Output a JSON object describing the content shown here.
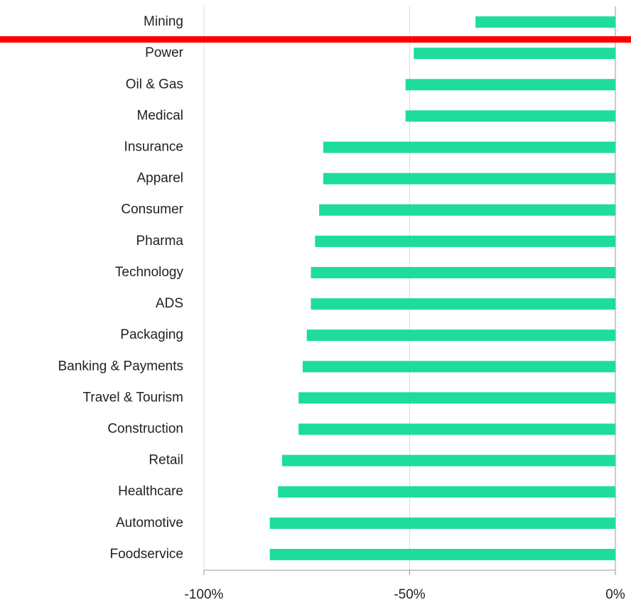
{
  "chart_data": {
    "type": "barh",
    "categories": [
      "Mining",
      "Power",
      "Oil & Gas",
      "Medical",
      "Insurance",
      "Apparel",
      "Consumer",
      "Pharma",
      "Technology",
      "ADS",
      "Packaging",
      "Banking & Payments",
      "Travel & Tourism",
      "Construction",
      "Retail",
      "Healthcare",
      "Automotive",
      "Foodservice"
    ],
    "values": [
      -34,
      -49,
      -51,
      -51,
      -71,
      -71,
      -72,
      -73,
      -74,
      -74,
      -75,
      -76,
      -77,
      -77,
      -81,
      -82,
      -84,
      -84
    ],
    "color": "#1ddc9c",
    "xlim": [
      -100,
      0
    ],
    "xticks": [
      {
        "value": -100,
        "label": "-100%"
      },
      {
        "value": -50,
        "label": "-50%"
      },
      {
        "value": 0,
        "label": "0%"
      }
    ],
    "grid": true
  }
}
